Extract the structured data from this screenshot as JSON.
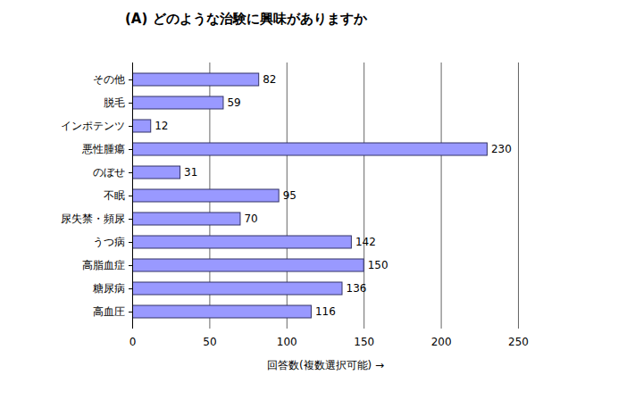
{
  "chart_data": {
    "type": "bar",
    "orientation": "horizontal",
    "title": "(A) どのような治験に興味がありますか",
    "x_label": "回答数(複数選択可能)",
    "categories": [
      "その他",
      "脱毛",
      "インポテンツ",
      "悪性腫瘍",
      "のぼせ",
      "不眠",
      "尿失禁・頻尿",
      "うつ病",
      "高脂血症",
      "糖尿病",
      "高血圧"
    ],
    "values": [
      82,
      59,
      12,
      230,
      31,
      95,
      70,
      142,
      150,
      136,
      116
    ],
    "color": "#9999ff",
    "xlim": [
      0,
      250
    ],
    "xticks": [
      0,
      50,
      100,
      150,
      200,
      250
    ],
    "grid": true,
    "data_labels": true
  }
}
